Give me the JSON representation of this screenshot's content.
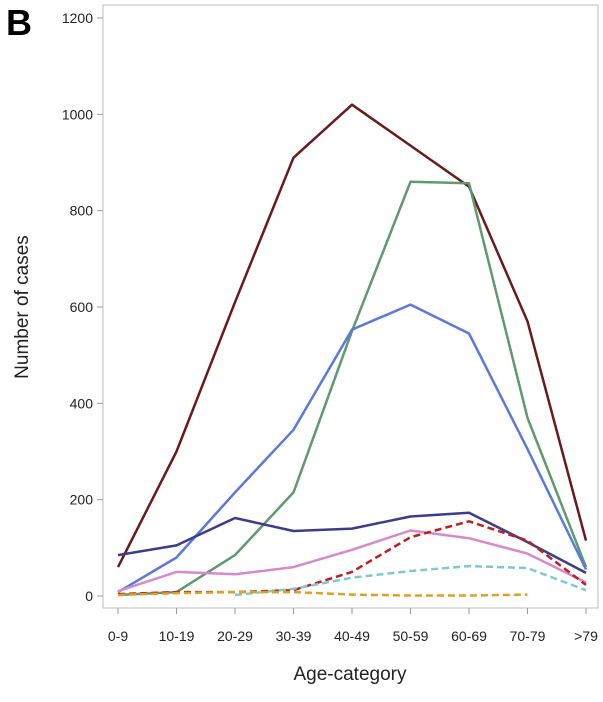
{
  "panel_label": "B",
  "chart_data": {
    "type": "line",
    "xlabel": "Age-category",
    "ylabel": "Number of cases",
    "categories": [
      "0-9",
      "10-19",
      "20-29",
      "30-39",
      "40-49",
      "50-59",
      "60-69",
      "70-79",
      ">79"
    ],
    "ylim": [
      0,
      1200
    ],
    "yticks": [
      0,
      200,
      400,
      600,
      800,
      1000,
      1200
    ],
    "grid": false,
    "legend": "none",
    "series": [
      {
        "color": "#6b1a1a",
        "dash": "solid",
        "values": [
          60,
          300,
          610,
          910,
          1020,
          935,
          850,
          570,
          115
        ]
      },
      {
        "color": "#5f9a6c",
        "dash": "solid",
        "values": [
          2,
          8,
          85,
          215,
          550,
          860,
          857,
          370,
          60
        ]
      },
      {
        "color": "#5b78dc",
        "dash": "solid",
        "values": [
          8,
          80,
          215,
          345,
          553,
          605,
          545,
          305,
          55
        ]
      },
      {
        "color": "#3b3c8c",
        "dash": "solid",
        "values": [
          85,
          105,
          162,
          135,
          140,
          165,
          173,
          112,
          48
        ]
      },
      {
        "color": "#d78acb",
        "dash": "solid",
        "values": [
          10,
          50,
          45,
          60,
          96,
          136,
          120,
          88,
          28
        ]
      },
      {
        "color": "#c0201c",
        "dash": "dashed",
        "values": [
          4,
          8,
          8,
          12,
          50,
          122,
          155,
          115,
          23
        ]
      },
      {
        "color": "#7ccad0",
        "dash": "dashed",
        "values": [
          null,
          null,
          2,
          15,
          38,
          52,
          62,
          58,
          12
        ]
      },
      {
        "color": "#e0a020",
        "dash": "dashed",
        "values": [
          2,
          6,
          8,
          8,
          3,
          1,
          1,
          3,
          null
        ]
      }
    ]
  }
}
